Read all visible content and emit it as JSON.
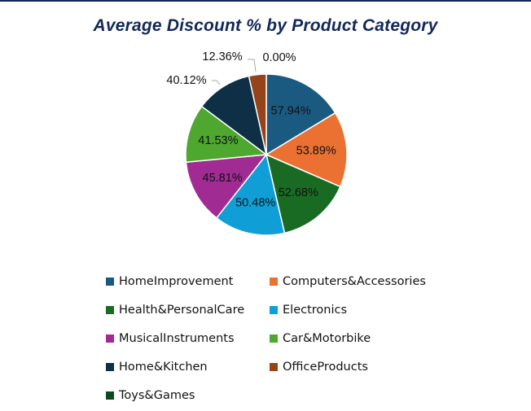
{
  "chart_data": {
    "type": "pie",
    "title": "Average Discount % by Product Category",
    "categories": [
      "HomeImprovement",
      "Computers&Accessories",
      "Health&PersonalCare",
      "Electronics",
      "MusicalInstruments",
      "Car&Motorbike",
      "Home&Kitchen",
      "OfficeProducts",
      "Toys&Games"
    ],
    "values": [
      57.94,
      53.89,
      52.68,
      50.48,
      45.81,
      41.53,
      40.12,
      12.36,
      0.0
    ],
    "labels": [
      "57.94%",
      "53.89%",
      "52.68%",
      "50.48%",
      "45.81%",
      "41.53%",
      "40.12%",
      "12.36%",
      "0.00%"
    ],
    "colors": [
      "#1b5a80",
      "#ea7132",
      "#196b24",
      "#0f9ed5",
      "#a02b93",
      "#4ea72e",
      "#0e2f45",
      "#96431a",
      "#0f4a1e"
    ],
    "legend_position": "bottom"
  }
}
